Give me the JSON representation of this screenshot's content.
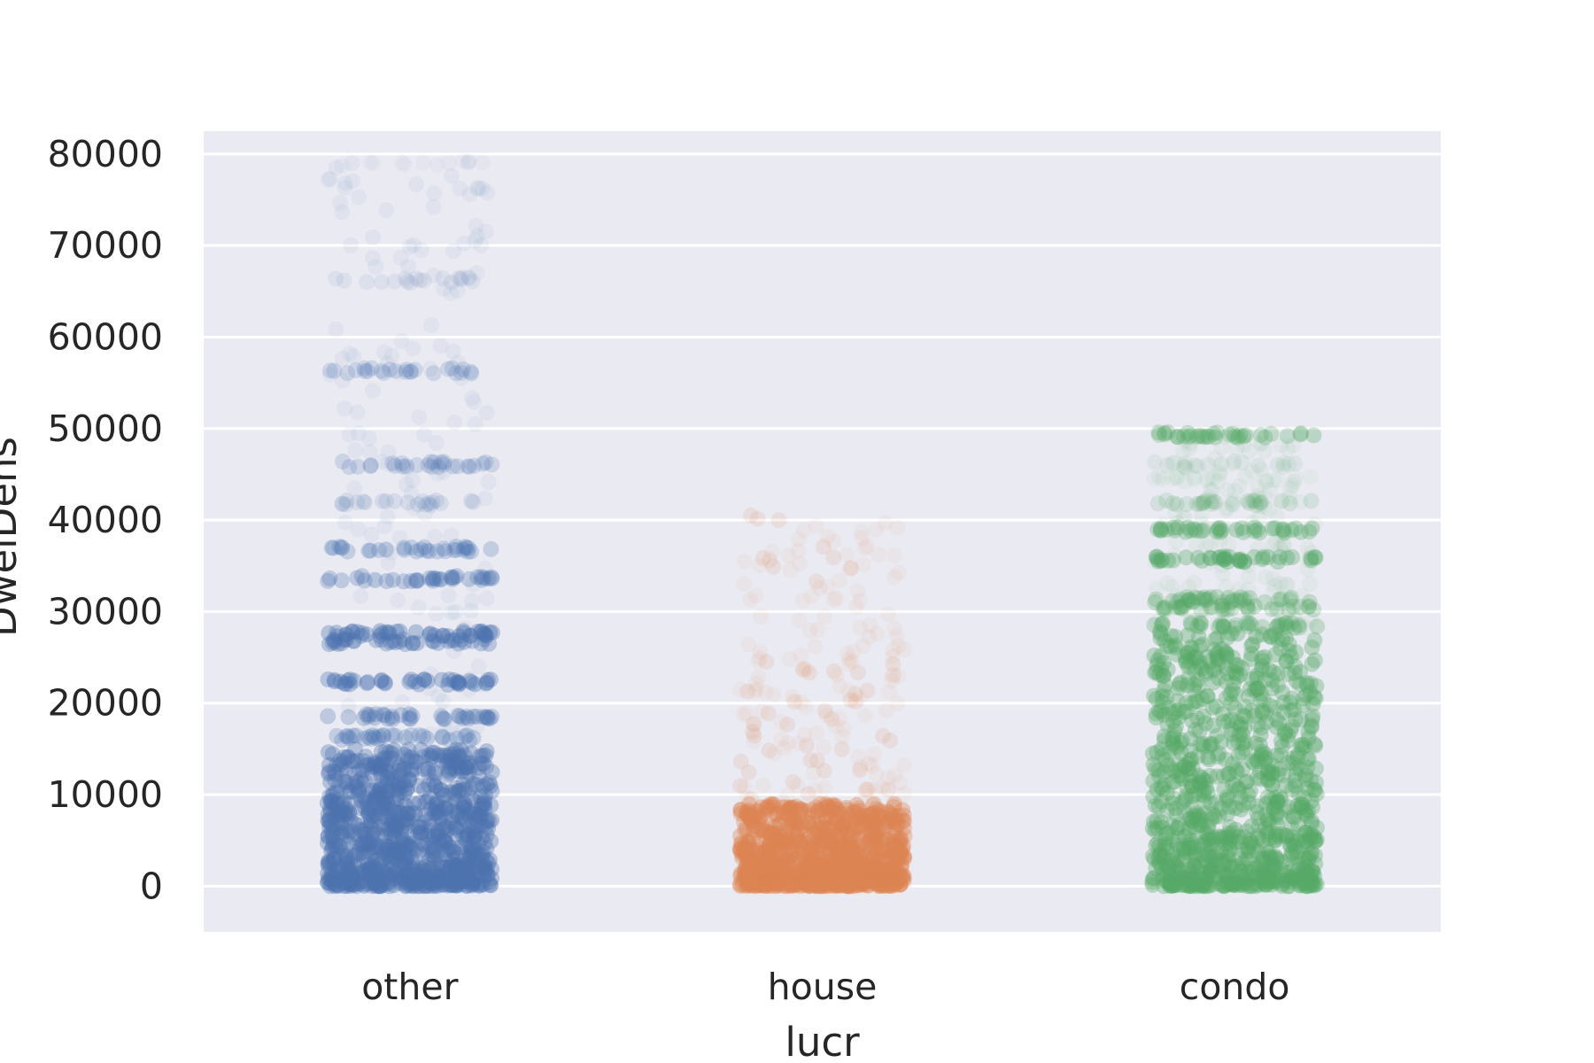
{
  "chart_data": {
    "type": "scatter",
    "subtype": "strip",
    "title": "",
    "xlabel": "lucr",
    "ylabel": "DwelDens",
    "categories": [
      "other",
      "house",
      "condo"
    ],
    "ylim": [
      -5000,
      82500
    ],
    "yticks": [
      0,
      10000,
      20000,
      30000,
      40000,
      50000,
      60000,
      70000,
      80000
    ],
    "grid": true,
    "legend": "none",
    "background": "#eaeaf2",
    "series": [
      {
        "category": "other",
        "color": "#4c72b0",
        "range": [
          0,
          79000
        ],
        "bands": [
          {
            "value": 79000,
            "alpha": 0.1
          },
          {
            "value": 66200,
            "alpha": 0.25
          },
          {
            "value": 56300,
            "alpha": 0.5
          },
          {
            "value": 46100,
            "alpha": 0.55
          },
          {
            "value": 41900,
            "alpha": 0.35
          },
          {
            "value": 36800,
            "alpha": 0.7
          },
          {
            "value": 33600,
            "alpha": 0.8
          },
          {
            "value": 27600,
            "alpha": 1.0
          },
          {
            "value": 26700,
            "alpha": 0.9
          },
          {
            "value": 22300,
            "alpha": 0.95
          },
          {
            "value": 18500,
            "alpha": 0.8
          },
          {
            "value": 16200,
            "alpha": 0.7
          }
        ],
        "dense_below": 15000
      },
      {
        "category": "house",
        "color": "#dd8452",
        "range": [
          0,
          40000
        ],
        "outliers": [
          40000,
          36300,
          34100,
          24000,
          23000,
          21500,
          19800,
          18500,
          17200,
          15700,
          14200,
          13100,
          11800,
          10900,
          9700
        ],
        "dense_below": 9000
      },
      {
        "category": "condo",
        "color": "#55a868",
        "range": [
          0,
          49300
        ],
        "bands": [
          {
            "value": 49300,
            "alpha": 0.8
          },
          {
            "value": 46100,
            "alpha": 0.25
          },
          {
            "value": 44500,
            "alpha": 0.15
          },
          {
            "value": 41900,
            "alpha": 0.45
          },
          {
            "value": 38900,
            "alpha": 0.9
          },
          {
            "value": 35700,
            "alpha": 0.95
          },
          {
            "value": 31300,
            "alpha": 0.8
          },
          {
            "value": 30400,
            "alpha": 0.7
          },
          {
            "value": 28500,
            "alpha": 0.8
          }
        ],
        "dense_below": 28000
      }
    ]
  }
}
